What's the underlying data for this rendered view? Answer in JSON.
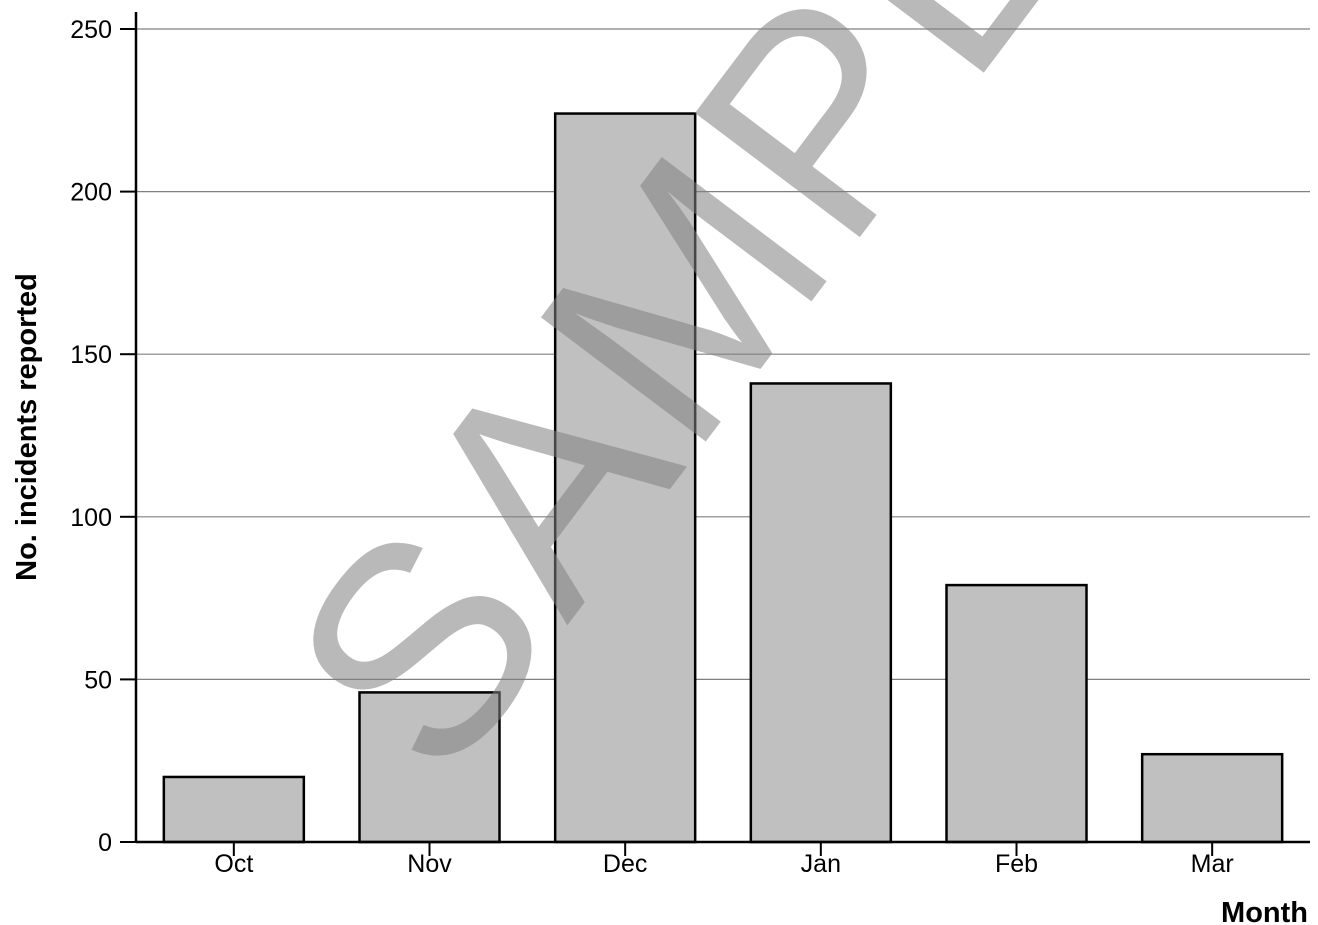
{
  "chart_data": {
    "type": "bar",
    "categories": [
      "Oct",
      "Nov",
      "Dec",
      "Jan",
      "Feb",
      "Mar"
    ],
    "values": [
      20,
      46,
      224,
      141,
      79,
      27
    ],
    "title": "",
    "xlabel": "Month",
    "ylabel": "No. incidents reported",
    "ylim": [
      0,
      250
    ],
    "yticks": [
      "0",
      "50",
      "100",
      "150",
      "200",
      "250"
    ],
    "grid": "horizontal",
    "colors": {
      "bar_fill": "#c0c0c0",
      "bar_stroke": "#000000",
      "grid": "#808080",
      "axis": "#000000"
    }
  },
  "watermark": {
    "text": "SAMPLE",
    "color": "#7f7f7f",
    "opacity": 0.55
  }
}
